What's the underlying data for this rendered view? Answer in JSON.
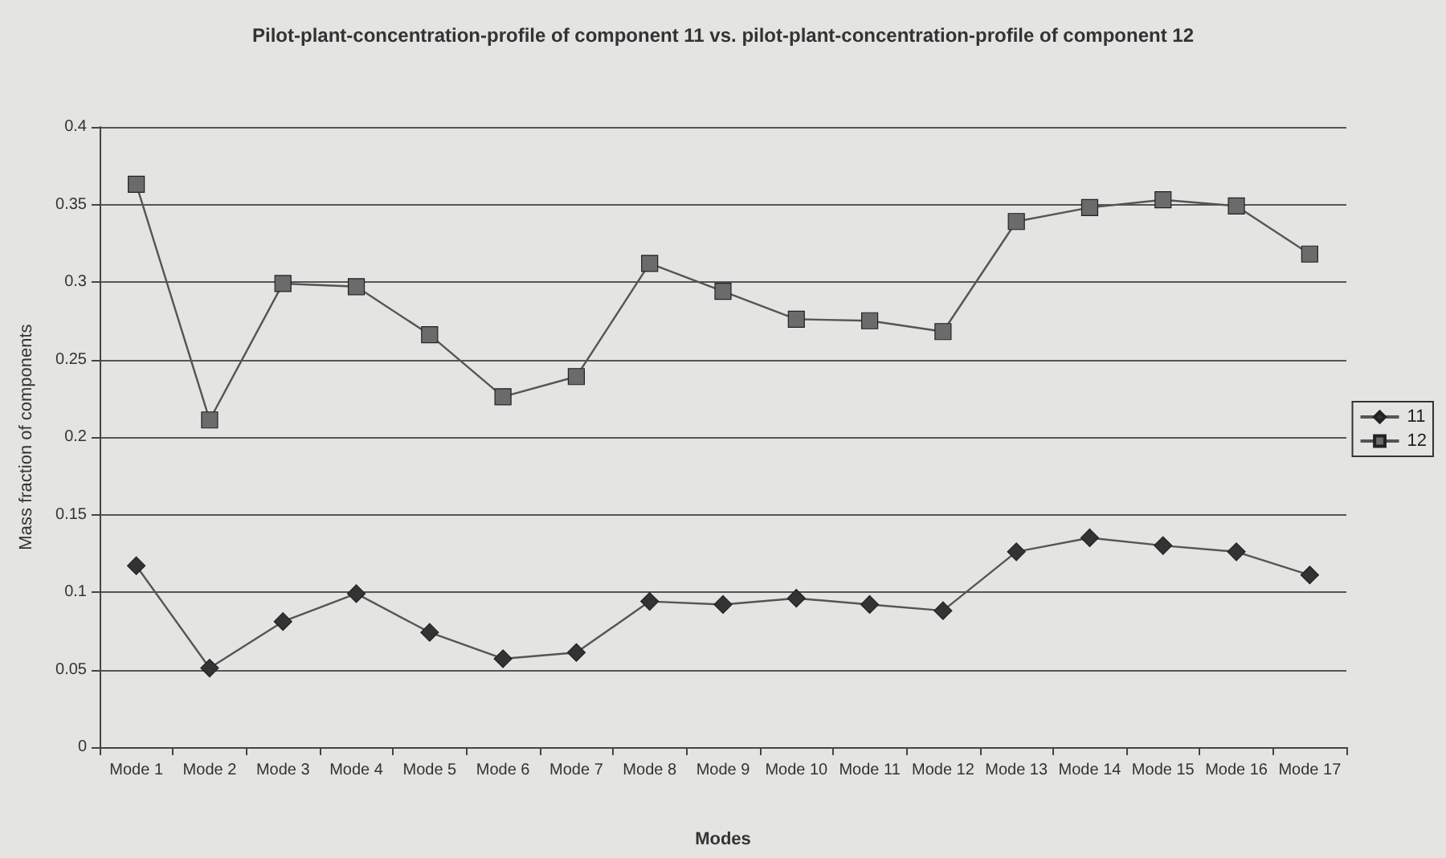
{
  "chart_data": {
    "type": "line",
    "title": "Pilot-plant-concentration-profile of component 11 vs. pilot-plant-concentration-profile of component 12",
    "xlabel": "Modes",
    "ylabel": "Mass fraction of components",
    "categories": [
      "Mode 1",
      "Mode 2",
      "Mode 3",
      "Mode 4",
      "Mode 5",
      "Mode 6",
      "Mode 7",
      "Mode 8",
      "Mode 9",
      "Mode 10",
      "Mode 11",
      "Mode 12",
      "Mode 13",
      "Mode 14",
      "Mode 15",
      "Mode 16",
      "Mode 17"
    ],
    "series": [
      {
        "name": "11",
        "color": "#333333",
        "marker": "diamond",
        "values": [
          0.117,
          0.051,
          0.081,
          0.099,
          0.074,
          0.057,
          0.061,
          0.094,
          0.092,
          0.096,
          0.092,
          0.088,
          0.126,
          0.135,
          0.13,
          0.126,
          0.111
        ]
      },
      {
        "name": "12",
        "color": "#6b6b6b",
        "marker": "square",
        "values": [
          0.363,
          0.211,
          0.299,
          0.297,
          0.266,
          0.226,
          0.239,
          0.312,
          0.294,
          0.276,
          0.275,
          0.268,
          0.339,
          0.348,
          0.353,
          0.349,
          0.318
        ]
      }
    ],
    "ylim": [
      0,
      0.4
    ],
    "yticks": [
      0,
      0.05,
      0.1,
      0.15,
      0.2,
      0.25,
      0.3,
      0.35,
      0.4
    ],
    "grid": "y",
    "legend": "right",
    "line_style": "solid"
  }
}
